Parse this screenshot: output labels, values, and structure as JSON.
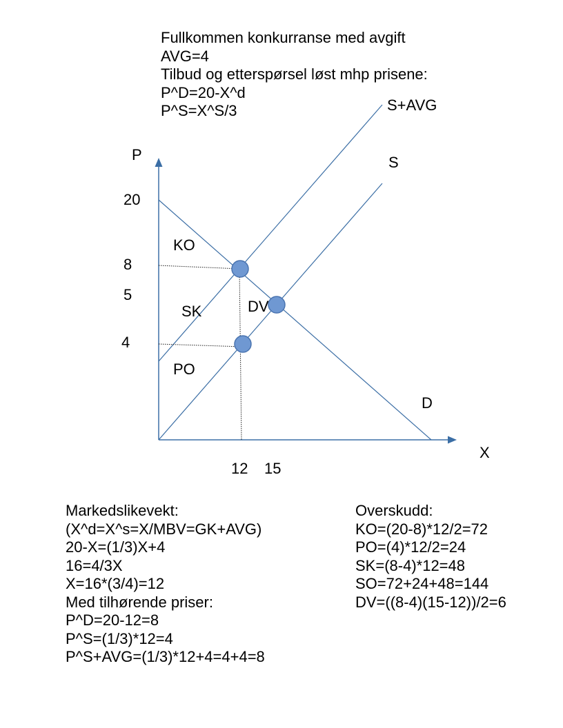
{
  "header": {
    "lines": [
      "Fullkommen konkurranse med avgift",
      "AVG=4",
      "Tilbud og etterspørsel løst mhp prisene:",
      "P^D=20-X^d",
      "P^S=X^S/3"
    ]
  },
  "diagram": {
    "axes": {
      "y_label": "P",
      "x_label": "X"
    },
    "y_ticks": [
      "20",
      "8",
      "5",
      "4"
    ],
    "x_ticks": [
      "12",
      "15"
    ],
    "curve_labels": {
      "supply_tax": "S+AVG",
      "supply": "S",
      "demand": "D"
    },
    "area_labels": {
      "ko": "KO",
      "sk": "SK",
      "dv": "DV",
      "po": "PO"
    },
    "colors": {
      "line": "#3b6ea5",
      "point_fill": "#6f98d2",
      "point_stroke": "#4a74b0"
    }
  },
  "left_block": {
    "lines": [
      "Markedslikevekt:",
      "(X^d=X^s=X/MBV=GK+AVG)",
      "20-X=(1/3)X+4",
      "16=4/3X",
      "X=16*(3/4)=12",
      "Med tilhørende priser:",
      "P^D=20-12=8",
      "P^S=(1/3)*12=4",
      "P^S+AVG=(1/3)*12+4=4+4=8"
    ]
  },
  "right_block": {
    "lines": [
      "Overskudd:",
      "KO=(20-8)*12/2=72",
      "PO=(4)*12/2=24",
      "SK=(8-4)*12=48",
      "SO=72+24+48=144",
      "DV=((8-4)(15-12))/2=6"
    ]
  }
}
